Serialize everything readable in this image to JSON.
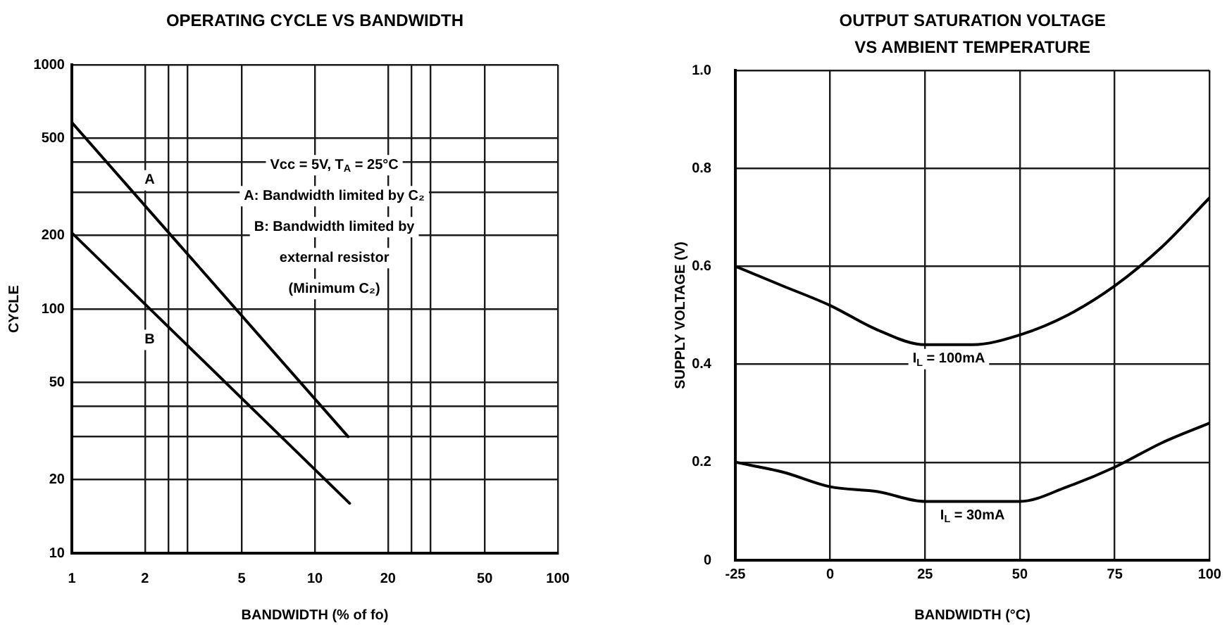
{
  "chart_data": [
    {
      "type": "line",
      "title": "OPERATING CYCLE VS BANDWIDTH",
      "xlabel": "BANDWIDTH (% of fo)",
      "ylabel": "CYCLE",
      "annotations": [
        "Vcc = 5V, T$_{A}$ = 25°C",
        "A: Bandwidth limited by C₂",
        "B: Bandwidth limited by",
        "external resistor",
        "(Minimum C₂)"
      ],
      "series": [
        {
          "name": "A",
          "color": "#000000",
          "x": [
            1,
            13.7
          ],
          "values": [
            580,
            30
          ]
        },
        {
          "name": "B",
          "color": "#000000",
          "x": [
            1,
            13.9
          ],
          "values": [
            205,
            16
          ]
        }
      ],
      "log": "xy",
      "xlim": [
        1,
        100
      ],
      "ylim": [
        10,
        1000
      ],
      "xticks": [
        1,
        2,
        {
          "value": 2.5,
          "label": null
        },
        {
          "value": 3,
          "label": null
        },
        5,
        10,
        20,
        {
          "value": 25,
          "label": null
        },
        {
          "value": 30,
          "label": null
        },
        50,
        100
      ],
      "yticks": [
        10,
        20,
        {
          "value": 30,
          "label": null
        },
        {
          "value": 40,
          "label": null
        },
        50,
        100,
        200,
        {
          "value": 300,
          "label": null
        },
        {
          "value": 400,
          "label": null
        },
        500,
        1000
      ],
      "grid": true
    },
    {
      "type": "line",
      "title": "OUTPUT SATURATION VOLTAGE VS AMBIENT TEMPERATURE",
      "xlabel": "BANDWIDTH (°C)",
      "ylabel": "SUPPLY VOLTAGE (V)",
      "x": [
        -25,
        -12.5,
        0,
        12.5,
        25,
        37.5,
        50,
        62.5,
        75,
        87.5,
        100
      ],
      "series": [
        {
          "name": "I$_{L}$ = 100mA",
          "color": "#000000",
          "values": [
            0.6,
            0.56,
            0.52,
            0.47,
            0.44,
            0.44,
            0.46,
            0.5,
            0.56,
            0.64,
            0.74
          ]
        },
        {
          "name": "I$_{L}$ = 30mA",
          "color": "#000000",
          "values": [
            0.2,
            0.18,
            0.15,
            0.14,
            0.12,
            0.12,
            0.12,
            0.15,
            0.19,
            0.24,
            0.28
          ]
        }
      ],
      "xlim": [
        -25,
        100
      ],
      "ylim": [
        0,
        1
      ],
      "xticks": [
        -25,
        0,
        25,
        50,
        75,
        100
      ],
      "yticks": [
        0,
        0.2,
        0.4,
        0.6,
        0.8,
        {
          "value": 1,
          "label": "1.0"
        }
      ],
      "grid": true
    }
  ]
}
